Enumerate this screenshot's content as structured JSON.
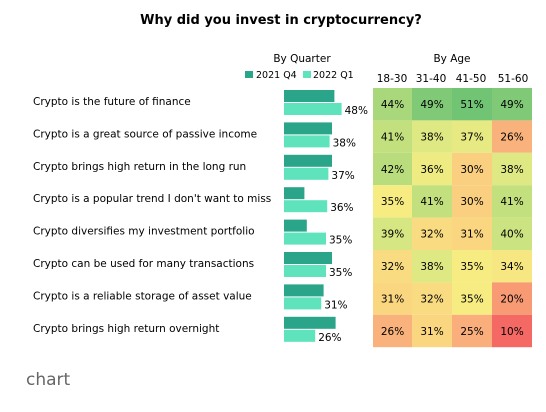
{
  "chart_data": {
    "type": "bar",
    "title": "Why did you invest in cryptocurrency?",
    "categories": [
      "Crypto is the future of finance",
      "Crypto is a great source of passive income",
      "Crypto brings high return in the long run",
      "Crypto is a popular trend I don't want to miss",
      "Crypto diversifies my investment portfolio",
      "Crypto can be used for many transactions",
      "Crypto is a reliable storage of asset value",
      "Crypto brings high return overnight"
    ],
    "by_quarter": {
      "header": "By Quarter",
      "series": [
        {
          "name": "2021 Q4",
          "color": "#2aa58a",
          "values": [
            42,
            40,
            40,
            17,
            19,
            40,
            33,
            43
          ]
        },
        {
          "name": "2022 Q1",
          "color": "#5fe3bd",
          "values": [
            48,
            38,
            37,
            36,
            35,
            35,
            31,
            26
          ]
        }
      ],
      "value_labels": [
        "48%",
        "38%",
        "37%",
        "36%",
        "35%",
        "35%",
        "31%",
        "26%"
      ]
    },
    "by_age": {
      "header": "By Age",
      "columns": [
        "18-30",
        "31-40",
        "41-50",
        "51-60"
      ],
      "values": [
        [
          44,
          49,
          51,
          49
        ],
        [
          41,
          38,
          37,
          26
        ],
        [
          42,
          36,
          30,
          38
        ],
        [
          35,
          41,
          30,
          41
        ],
        [
          39,
          32,
          31,
          40
        ],
        [
          32,
          38,
          35,
          34
        ],
        [
          31,
          32,
          35,
          20
        ],
        [
          26,
          31,
          25,
          10
        ]
      ],
      "labels": [
        [
          "44%",
          "49%",
          "51%",
          "49%"
        ],
        [
          "41%",
          "38%",
          "37%",
          "26%"
        ],
        [
          "42%",
          "36%",
          "30%",
          "38%"
        ],
        [
          "35%",
          "41%",
          "30%",
          "41%"
        ],
        [
          "39%",
          "32%",
          "31%",
          "40%"
        ],
        [
          "32%",
          "38%",
          "35%",
          "34%"
        ],
        [
          "31%",
          "32%",
          "35%",
          "20%"
        ],
        [
          "26%",
          "31%",
          "25%",
          "10%"
        ]
      ]
    }
  },
  "caption": "chart"
}
